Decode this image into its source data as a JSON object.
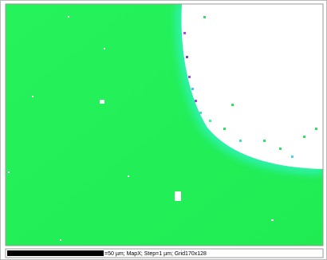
{
  "map": {
    "caption": "=50 µm; MapX; Step=1 µm; Grid170x128"
  }
}
